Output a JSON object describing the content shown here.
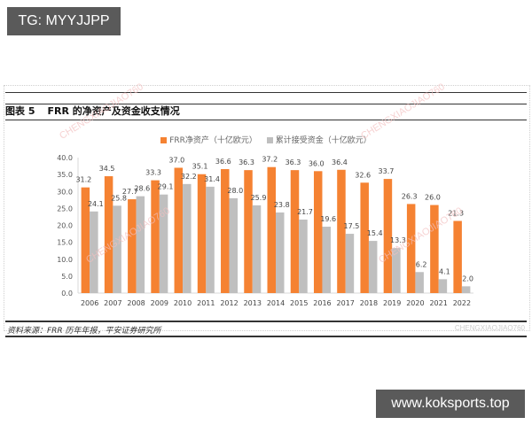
{
  "overlays": {
    "top_left_label": "TG: MYYJJPP",
    "bottom_right_label": "www.koksports.top"
  },
  "figure": {
    "number": "图表 5",
    "title": "FRR 的净资产及资金收支情况",
    "source": "资料来源：FRR 历年年报，平安证券研究所",
    "watermark": "CHENGXIAOJIAO760"
  },
  "colors": {
    "net_assets": "#f58232",
    "cumulative_funds": "#bfbfbf",
    "frame_rule": "#333333"
  },
  "chart_data": {
    "type": "bar",
    "title": "FRR 的净资产及资金收支情况",
    "xlabel": "",
    "ylabel": "",
    "ylim": [
      0,
      40
    ],
    "yticks": [
      "0.0",
      "5.0",
      "10.0",
      "15.0",
      "20.0",
      "25.0",
      "30.0",
      "35.0",
      "40.0"
    ],
    "grid": false,
    "legend_position": "top",
    "categories": [
      "2006",
      "2007",
      "2008",
      "2009",
      "2010",
      "2011",
      "2012",
      "2013",
      "2014",
      "2015",
      "2016",
      "2017",
      "2018",
      "2019",
      "2020",
      "2021",
      "2022"
    ],
    "series": [
      {
        "name": "FRR净资产（十亿欧元）",
        "color": "#f58232",
        "values": [
          31.2,
          34.5,
          27.7,
          33.3,
          37.0,
          35.1,
          36.6,
          36.3,
          37.2,
          36.3,
          36.0,
          36.4,
          32.6,
          33.7,
          26.3,
          26.0,
          21.3
        ]
      },
      {
        "name": "累计接受资金（十亿欧元）",
        "color": "#bfbfbf",
        "values": [
          24.1,
          25.8,
          28.6,
          29.1,
          32.2,
          31.4,
          28.0,
          25.9,
          23.8,
          21.7,
          19.6,
          17.5,
          15.4,
          13.3,
          6.2,
          4.1,
          2.0
        ]
      }
    ]
  }
}
